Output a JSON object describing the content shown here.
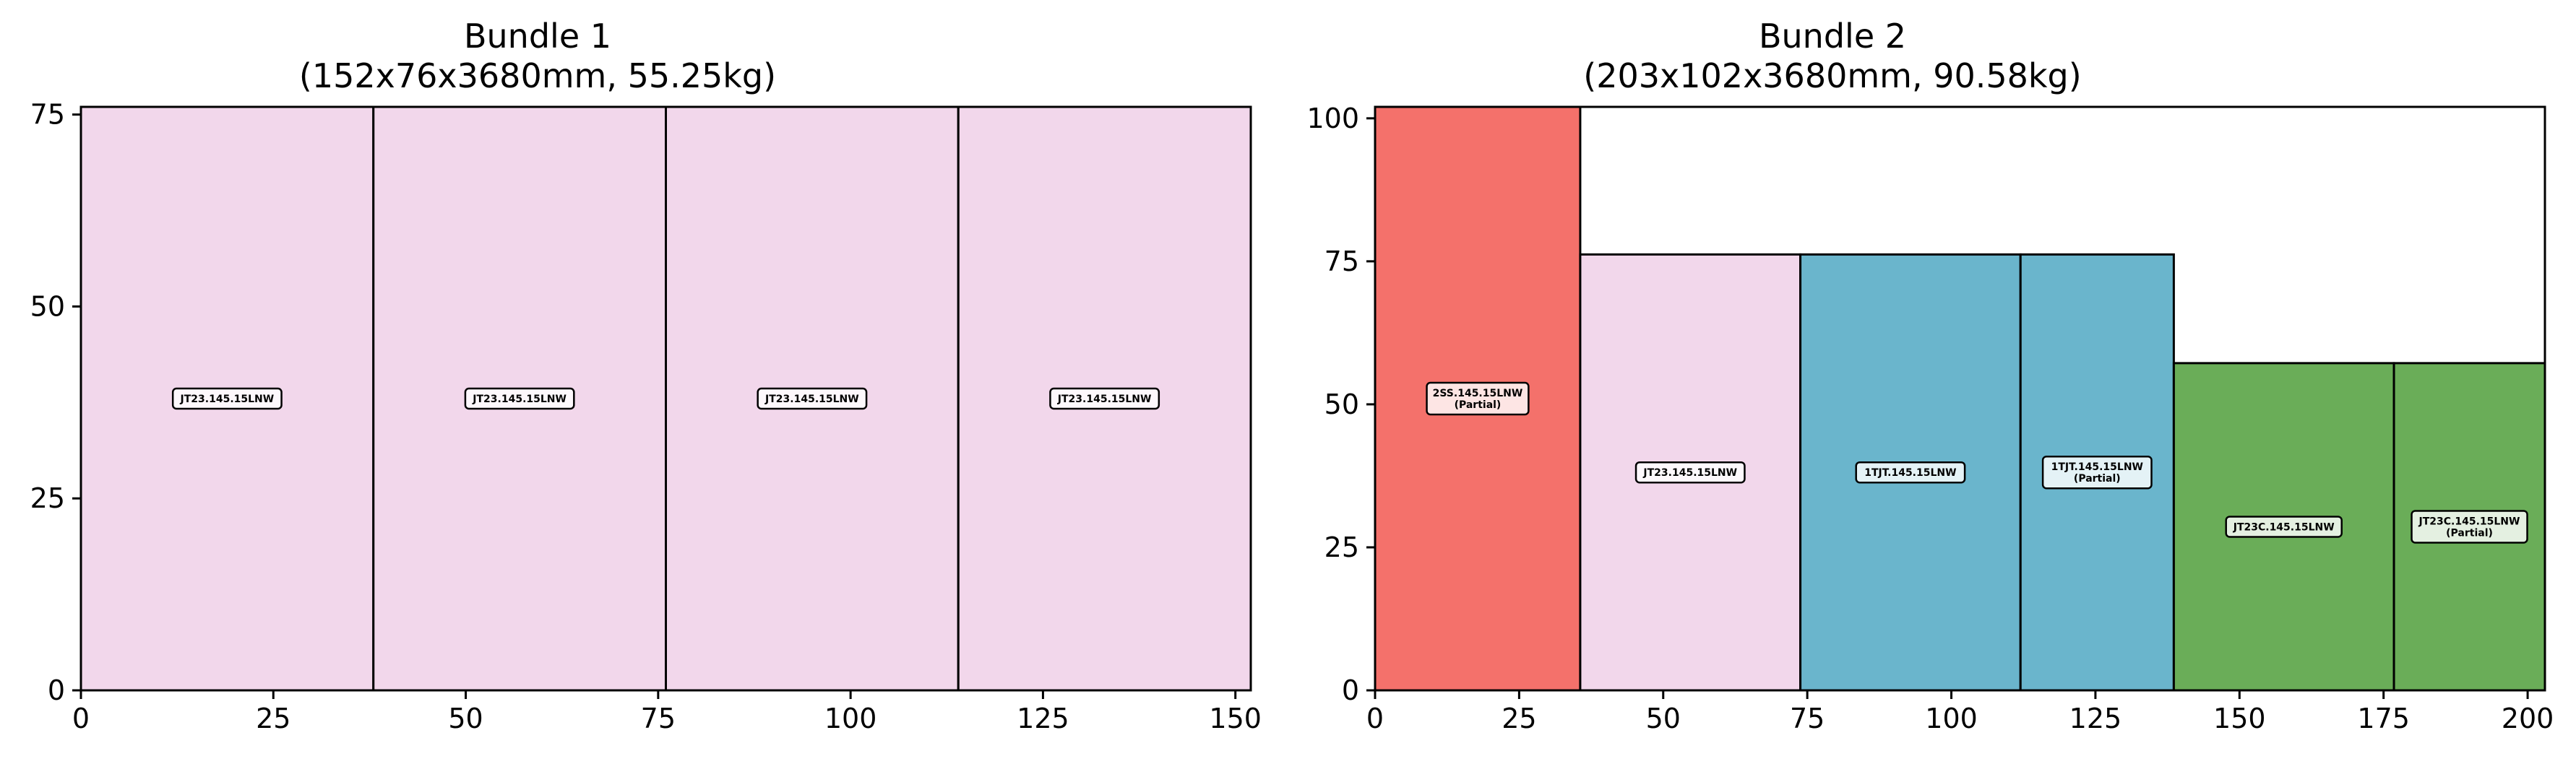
{
  "chart_data": [
    {
      "type": "bar",
      "title_line1": "Bundle 1",
      "title_line2": "(152x76x3680mm, 55.25kg)",
      "xlim": [
        0,
        152
      ],
      "ylim": [
        0,
        76
      ],
      "xticks": [
        0,
        25,
        50,
        75,
        100,
        125,
        150
      ],
      "yticks": [
        0,
        25,
        50,
        75
      ],
      "grid": false,
      "pieces": [
        {
          "x0": 0,
          "x1": 38,
          "height": 76,
          "color": "#f2d7eb",
          "label": "JT23.145.15LNW"
        },
        {
          "x0": 38,
          "x1": 76,
          "height": 76,
          "color": "#f2d7eb",
          "label": "JT23.145.15LNW"
        },
        {
          "x0": 76,
          "x1": 114,
          "height": 76,
          "color": "#f2d7eb",
          "label": "JT23.145.15LNW"
        },
        {
          "x0": 114,
          "x1": 152,
          "height": 76,
          "color": "#f2d7eb",
          "label": "JT23.145.15LNW"
        }
      ]
    },
    {
      "type": "bar",
      "title_line1": "Bundle 2",
      "title_line2": "(203x102x3680mm, 90.58kg)",
      "xlim": [
        0,
        203
      ],
      "ylim": [
        0,
        102
      ],
      "xticks": [
        0,
        25,
        50,
        75,
        100,
        125,
        150,
        175,
        200
      ],
      "yticks": [
        0,
        25,
        50,
        75,
        100
      ],
      "grid": false,
      "pieces": [
        {
          "x0": 0,
          "x1": 35.6,
          "height": 102,
          "color": "#f4716b",
          "label": "2SS.145.15LNW",
          "sublabel": "(Partial)"
        },
        {
          "x0": 35.6,
          "x1": 73.8,
          "height": 76.2,
          "color": "#f2d7eb",
          "label": "JT23.145.15LNW"
        },
        {
          "x0": 73.8,
          "x1": 112,
          "height": 76.2,
          "color": "#6ab5cc",
          "label": "1TJT.145.15LNW"
        },
        {
          "x0": 112,
          "x1": 138.6,
          "height": 76.2,
          "color": "#6ab5cc",
          "label": "1TJT.145.15LNW",
          "sublabel": "(Partial)"
        },
        {
          "x0": 138.6,
          "x1": 176.8,
          "height": 57.2,
          "color": "#6aad58",
          "label": "JT23C.145.15LNW"
        },
        {
          "x0": 176.8,
          "x1": 203,
          "height": 57.2,
          "color": "#6aad58",
          "label": "JT23C.145.15LNW",
          "sublabel": "(Partial)"
        }
      ]
    }
  ]
}
